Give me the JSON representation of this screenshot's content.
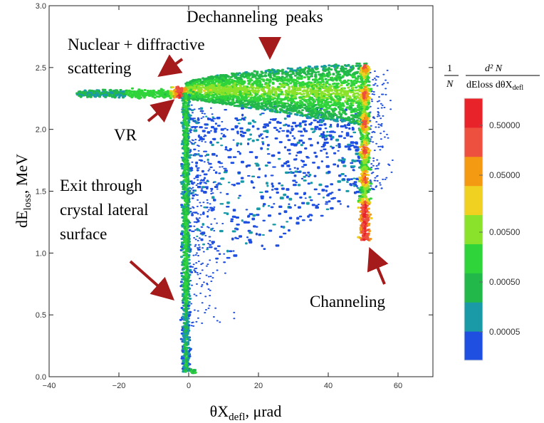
{
  "chart_data": {
    "type": "heatmap",
    "xlabel": {
      "main": "θX",
      "sub": "defl",
      "rest": ", μrad"
    },
    "ylabel": {
      "main": "dE",
      "sub": "loss",
      "rest": ", MeV"
    },
    "xlim": [
      -40,
      70
    ],
    "ylim": [
      0.0,
      3.0
    ],
    "x_ticks": [
      {
        "value": -40,
        "label": "−40"
      },
      {
        "value": -20,
        "label": "−20"
      },
      {
        "value": 0,
        "label": "0"
      },
      {
        "value": 20,
        "label": "20"
      },
      {
        "value": 40,
        "label": "40"
      },
      {
        "value": 60,
        "label": "60"
      }
    ],
    "y_ticks": [
      {
        "value": 0.0,
        "label": "0.0"
      },
      {
        "value": 0.5,
        "label": "0.5"
      },
      {
        "value": 1.0,
        "label": "1.0"
      },
      {
        "value": 1.5,
        "label": "1.5"
      },
      {
        "value": 2.0,
        "label": "2.0"
      },
      {
        "value": 2.5,
        "label": "2.5"
      },
      {
        "value": 3.0,
        "label": "3.0"
      }
    ],
    "colorbar": {
      "title": {
        "num_a": "1",
        "den_a": "N",
        "num_b": "d² N",
        "den_b": "dEloss dθX",
        "den_b_sub": "defl"
      },
      "colors": [
        "#1f4fe0",
        "#1a9aa6",
        "#22b84a",
        "#2fd43a",
        "#8ae22a",
        "#f0d020",
        "#f39a12",
        "#ee5040",
        "#e8242a"
      ],
      "tick_labels": [
        "0.00005",
        "0.00050",
        "0.00500",
        "0.05000",
        "0.50000"
      ]
    },
    "regions": [
      {
        "name": "horizontal-band",
        "x": [
          -30,
          -2
        ],
        "y": 2.29,
        "spread": 0.03,
        "level": 3
      },
      {
        "name": "vr-peak",
        "x": -2,
        "y": 2.3,
        "level": 8
      },
      {
        "name": "dechanneling-band",
        "x": [
          0,
          50
        ],
        "y": [
          2.15,
          2.55
        ],
        "level": 4
      },
      {
        "name": "exit-stripe",
        "x": -0.8,
        "y": [
          0.02,
          2.3
        ],
        "level": 4
      },
      {
        "name": "channeling-peak",
        "x": 50.5,
        "y": [
          1.1,
          2.5
        ],
        "level": 8
      }
    ],
    "annotations": [
      "Dechanneling  peaks",
      "Nuclear + diffractive",
      "scattering",
      "VR",
      "Exit through",
      "crystal lateral",
      "surface",
      "Channeling"
    ],
    "arrow_color": "#a51a1a"
  }
}
